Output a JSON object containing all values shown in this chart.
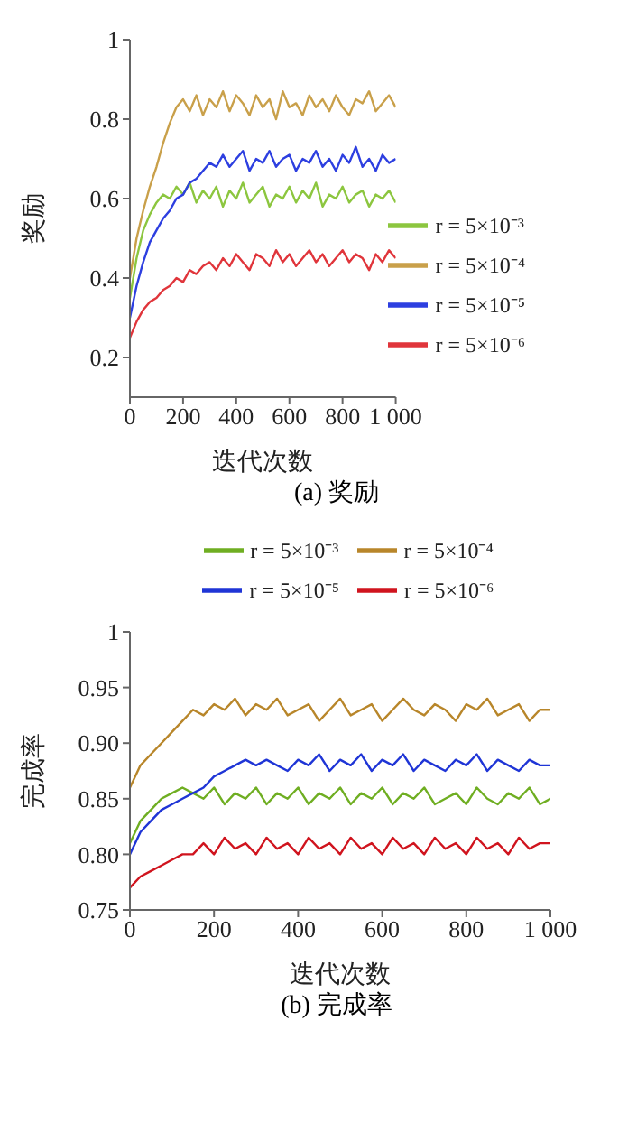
{
  "chart_data": [
    {
      "type": "line",
      "title": "(a) 奖励",
      "xlabel": "迭代次数",
      "ylabel": "奖励",
      "x": [
        0,
        25,
        50,
        75,
        100,
        125,
        150,
        175,
        200,
        225,
        250,
        275,
        300,
        325,
        350,
        375,
        400,
        425,
        450,
        475,
        500,
        525,
        550,
        575,
        600,
        625,
        650,
        675,
        700,
        725,
        750,
        775,
        800,
        825,
        850,
        875,
        900,
        925,
        950,
        975,
        1000
      ],
      "series": [
        {
          "name": "r = 5×10⁻³",
          "color": "#8cc63f",
          "values": [
            0.35,
            0.45,
            0.52,
            0.56,
            0.59,
            0.61,
            0.6,
            0.63,
            0.61,
            0.64,
            0.59,
            0.62,
            0.6,
            0.63,
            0.58,
            0.62,
            0.6,
            0.64,
            0.59,
            0.61,
            0.63,
            0.58,
            0.61,
            0.6,
            0.63,
            0.59,
            0.62,
            0.6,
            0.64,
            0.58,
            0.61,
            0.6,
            0.63,
            0.59,
            0.61,
            0.62,
            0.58,
            0.61,
            0.6,
            0.62,
            0.59
          ]
        },
        {
          "name": "r = 5×10⁻⁴",
          "color": "#c9a04a",
          "values": [
            0.4,
            0.5,
            0.57,
            0.63,
            0.68,
            0.74,
            0.79,
            0.83,
            0.85,
            0.82,
            0.86,
            0.81,
            0.85,
            0.83,
            0.87,
            0.82,
            0.86,
            0.84,
            0.81,
            0.86,
            0.83,
            0.85,
            0.8,
            0.87,
            0.83,
            0.84,
            0.81,
            0.86,
            0.83,
            0.85,
            0.82,
            0.86,
            0.83,
            0.81,
            0.85,
            0.84,
            0.87,
            0.82,
            0.84,
            0.86,
            0.83
          ]
        },
        {
          "name": "r = 5×10⁻⁵",
          "color": "#2d3fe0",
          "values": [
            0.3,
            0.38,
            0.44,
            0.49,
            0.52,
            0.55,
            0.57,
            0.6,
            0.61,
            0.64,
            0.65,
            0.67,
            0.69,
            0.68,
            0.71,
            0.68,
            0.7,
            0.72,
            0.67,
            0.7,
            0.69,
            0.72,
            0.68,
            0.7,
            0.71,
            0.67,
            0.7,
            0.69,
            0.72,
            0.68,
            0.7,
            0.67,
            0.71,
            0.69,
            0.73,
            0.68,
            0.7,
            0.67,
            0.71,
            0.69,
            0.7
          ]
        },
        {
          "name": "r = 5×10⁻⁶",
          "color": "#e0353b",
          "values": [
            0.25,
            0.29,
            0.32,
            0.34,
            0.35,
            0.37,
            0.38,
            0.4,
            0.39,
            0.42,
            0.41,
            0.43,
            0.44,
            0.42,
            0.45,
            0.43,
            0.46,
            0.44,
            0.42,
            0.46,
            0.45,
            0.43,
            0.47,
            0.44,
            0.46,
            0.43,
            0.45,
            0.47,
            0.44,
            0.46,
            0.43,
            0.45,
            0.47,
            0.44,
            0.46,
            0.45,
            0.42,
            0.46,
            0.44,
            0.47,
            0.45
          ]
        }
      ],
      "xlim": [
        0,
        1000
      ],
      "xticks": [
        0,
        200,
        400,
        600,
        800,
        {
          "value": 1000,
          "label": "1 000"
        }
      ],
      "ylim": [
        0.1,
        1
      ],
      "yticks": [
        0.2,
        0.4,
        0.6,
        0.8,
        1
      ],
      "grid": false,
      "legend": "bottom right",
      "marker": "none",
      "line_style": "solid"
    },
    {
      "type": "line",
      "title": "(b) 完成率",
      "xlabel": "迭代次数",
      "ylabel": "完成率",
      "x": [
        0,
        25,
        50,
        75,
        100,
        125,
        150,
        175,
        200,
        225,
        250,
        275,
        300,
        325,
        350,
        375,
        400,
        425,
        450,
        475,
        500,
        525,
        550,
        575,
        600,
        625,
        650,
        675,
        700,
        725,
        750,
        775,
        800,
        825,
        850,
        875,
        900,
        925,
        950,
        975,
        1000
      ],
      "series": [
        {
          "name": "r = 5×10⁻³",
          "color": "#6fae22",
          "values": [
            0.81,
            0.83,
            0.84,
            0.85,
            0.855,
            0.86,
            0.855,
            0.85,
            0.86,
            0.845,
            0.855,
            0.85,
            0.86,
            0.845,
            0.855,
            0.85,
            0.86,
            0.845,
            0.855,
            0.85,
            0.86,
            0.845,
            0.855,
            0.85,
            0.86,
            0.845,
            0.855,
            0.85,
            0.86,
            0.845,
            0.85,
            0.855,
            0.845,
            0.86,
            0.85,
            0.845,
            0.855,
            0.85,
            0.86,
            0.845,
            0.85
          ]
        },
        {
          "name": "r = 5×10⁻⁴",
          "color": "#b8862a",
          "values": [
            0.86,
            0.88,
            0.89,
            0.9,
            0.91,
            0.92,
            0.93,
            0.925,
            0.935,
            0.93,
            0.94,
            0.925,
            0.935,
            0.93,
            0.94,
            0.925,
            0.93,
            0.935,
            0.92,
            0.93,
            0.94,
            0.925,
            0.93,
            0.935,
            0.92,
            0.93,
            0.94,
            0.93,
            0.925,
            0.935,
            0.93,
            0.92,
            0.935,
            0.93,
            0.94,
            0.925,
            0.93,
            0.935,
            0.92,
            0.93,
            0.93
          ]
        },
        {
          "name": "r = 5×10⁻⁵",
          "color": "#1f35d6",
          "values": [
            0.8,
            0.82,
            0.83,
            0.84,
            0.845,
            0.85,
            0.855,
            0.86,
            0.87,
            0.875,
            0.88,
            0.885,
            0.88,
            0.885,
            0.88,
            0.875,
            0.885,
            0.88,
            0.89,
            0.875,
            0.885,
            0.88,
            0.89,
            0.875,
            0.885,
            0.88,
            0.89,
            0.875,
            0.885,
            0.88,
            0.875,
            0.885,
            0.88,
            0.89,
            0.875,
            0.885,
            0.88,
            0.875,
            0.885,
            0.88,
            0.88
          ]
        },
        {
          "name": "r = 5×10⁻⁶",
          "color": "#d0141e",
          "values": [
            0.77,
            0.78,
            0.785,
            0.79,
            0.795,
            0.8,
            0.8,
            0.81,
            0.8,
            0.815,
            0.805,
            0.81,
            0.8,
            0.815,
            0.805,
            0.81,
            0.8,
            0.815,
            0.805,
            0.81,
            0.8,
            0.815,
            0.805,
            0.81,
            0.8,
            0.815,
            0.805,
            0.81,
            0.8,
            0.815,
            0.805,
            0.81,
            0.8,
            0.815,
            0.805,
            0.81,
            0.8,
            0.815,
            0.805,
            0.81,
            0.81
          ]
        }
      ],
      "xlim": [
        0,
        1000
      ],
      "xticks": [
        0,
        200,
        400,
        600,
        800,
        {
          "value": 1000,
          "label": "1 000"
        }
      ],
      "ylim": [
        0.75,
        1
      ],
      "yticks": [
        {
          "value": 0.75,
          "label": "0.75"
        },
        {
          "value": 0.8,
          "label": "0.80"
        },
        0.85,
        {
          "value": 0.9,
          "label": "0.90"
        },
        0.95,
        1
      ],
      "grid": false,
      "legend": "top",
      "marker": "none",
      "line_style": "solid"
    }
  ]
}
